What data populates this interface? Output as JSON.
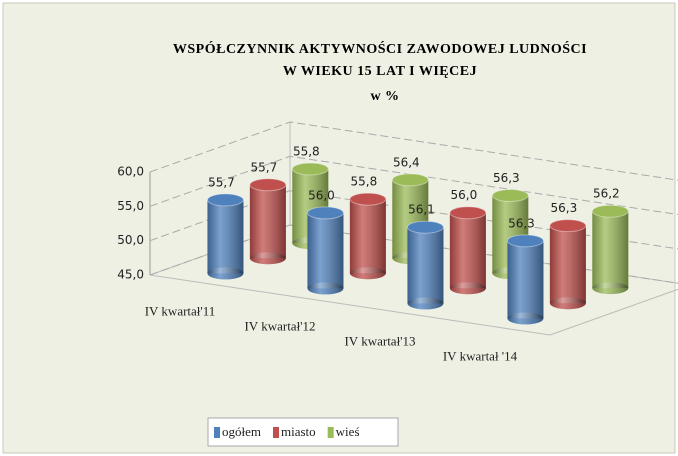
{
  "chart_data": {
    "type": "bar3d",
    "title": [
      "WSPÓŁCZYNNIK AKTYWNOŚCI ZAWODOWEJ LUDNOŚCI",
      "W WIEKU 15 LAT I WIĘCEJ"
    ],
    "subtitle": "w %",
    "categories": [
      "IV kwartał'11",
      "IV kwartał'12",
      "IV kwartał'13",
      "IV kwartał '14"
    ],
    "series": [
      {
        "name": "ogółem",
        "color": "#4f81bd",
        "values": [
          55.7,
          56.0,
          56.1,
          56.3
        ],
        "value_labels": [
          "55,7",
          "56,0",
          "56,1",
          "56,3"
        ]
      },
      {
        "name": "miasto",
        "color": "#c0504d",
        "values": [
          55.7,
          55.8,
          56.0,
          56.3
        ],
        "value_labels": [
          "55,7",
          "55,8",
          "56,0",
          "56,3"
        ]
      },
      {
        "name": "wieś",
        "color": "#9bbb59",
        "values": [
          55.8,
          56.4,
          56.3,
          56.2
        ],
        "value_labels": [
          "55,8",
          "56,4",
          "56,3",
          "56,2"
        ]
      }
    ],
    "ylim": [
      45,
      60
    ],
    "yticks": [
      {
        "value": 45,
        "label": "45,0"
      },
      {
        "value": 50,
        "label": "50,0"
      },
      {
        "value": 55,
        "label": "55,0"
      },
      {
        "value": 60,
        "label": "60,0"
      }
    ],
    "grid": true,
    "legend": "bottom"
  }
}
